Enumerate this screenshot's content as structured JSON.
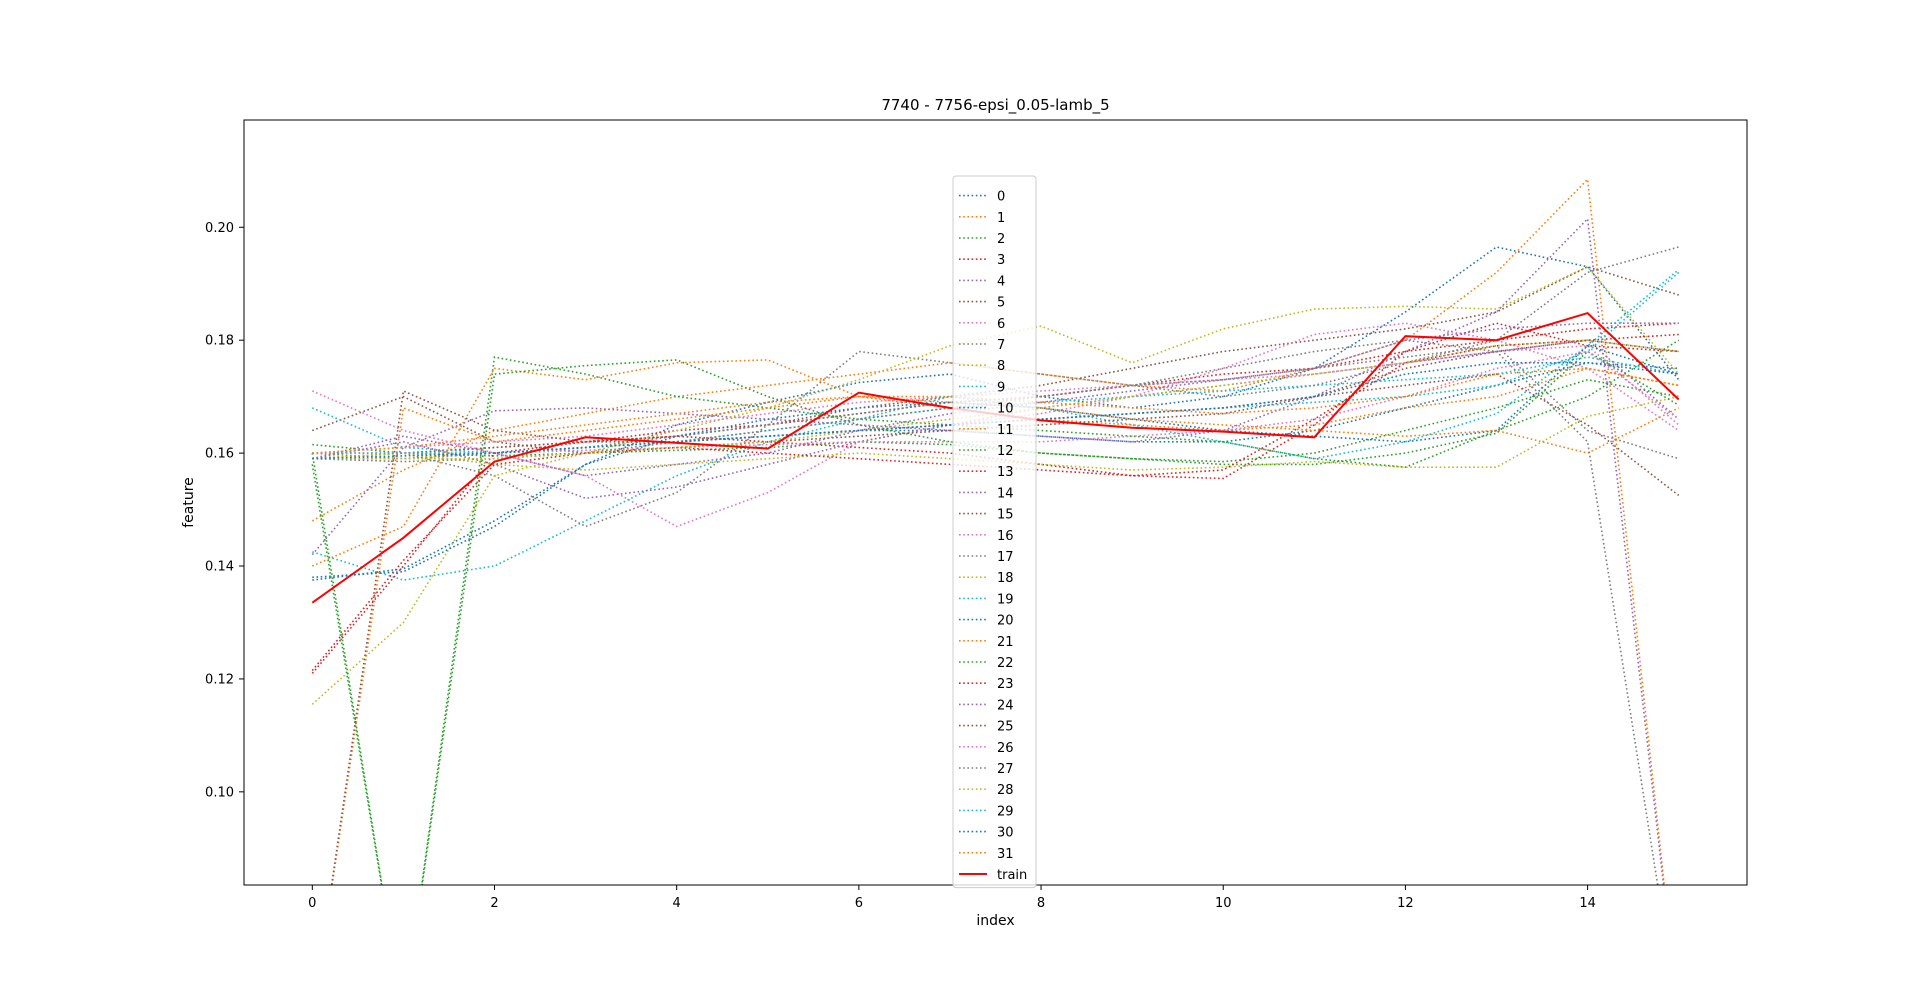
{
  "chart_data": {
    "type": "line",
    "title": "7740 - 7756-epsi_0.05-lamb_5",
    "xlabel": "index",
    "ylabel": "feature",
    "xlim": [
      -0.75,
      15.75
    ],
    "ylim": [
      0.0835,
      0.219
    ],
    "xticks": [
      0,
      2,
      4,
      6,
      8,
      10,
      12,
      14
    ],
    "yticks": [
      0.1,
      0.12,
      0.14,
      0.16,
      0.18,
      0.2
    ],
    "ytick_labels": [
      "0.10",
      "0.12",
      "0.14",
      "0.16",
      "0.18",
      "0.20"
    ],
    "grid": false,
    "legend_position": "upper-center",
    "x": [
      0,
      1,
      2,
      3,
      4,
      5,
      6,
      7,
      8,
      9,
      10,
      11,
      12,
      13,
      14,
      15
    ],
    "series": [
      {
        "name": "0",
        "color": "#1f77b4",
        "style": "dotted",
        "values": [
          0.1375,
          0.1395,
          0.148,
          0.158,
          0.165,
          0.169,
          0.1725,
          0.174,
          0.17,
          0.168,
          0.17,
          0.175,
          0.185,
          0.1965,
          0.193,
          0.173
        ]
      },
      {
        "name": "1",
        "color": "#ff7f0e",
        "style": "dotted",
        "values": [
          0.148,
          0.157,
          0.164,
          0.167,
          0.17,
          0.172,
          0.174,
          0.176,
          0.174,
          0.172,
          0.171,
          0.175,
          0.18,
          0.192,
          0.2085,
          0.06
        ]
      },
      {
        "name": "2",
        "color": "#2ca02c",
        "style": "dotted",
        "values": [
          0.1615,
          0.16,
          0.1595,
          0.16,
          0.1605,
          0.161,
          0.162,
          0.1615,
          0.16,
          0.159,
          0.1585,
          0.16,
          0.164,
          0.168,
          0.173,
          0.17
        ]
      },
      {
        "name": "3",
        "color": "#d62728",
        "style": "dotted",
        "values": [
          0.159,
          0.16,
          0.161,
          0.162,
          0.164,
          0.165,
          0.167,
          0.169,
          0.17,
          0.172,
          0.174,
          0.175,
          0.178,
          0.18,
          0.182,
          0.183
        ]
      },
      {
        "name": "4",
        "color": "#9467bd",
        "style": "dotted",
        "values": [
          0.142,
          0.161,
          0.1675,
          0.168,
          0.167,
          0.166,
          0.165,
          0.164,
          0.163,
          0.162,
          0.164,
          0.17,
          0.178,
          0.185,
          0.2015,
          0.06
        ]
      },
      {
        "name": "5",
        "color": "#8c564b",
        "style": "dotted",
        "values": [
          0.159,
          0.16,
          0.161,
          0.162,
          0.163,
          0.165,
          0.168,
          0.17,
          0.172,
          0.175,
          0.178,
          0.18,
          0.182,
          0.185,
          0.193,
          0.188
        ]
      },
      {
        "name": "6",
        "color": "#e377c2",
        "style": "dotted",
        "values": [
          0.171,
          0.164,
          0.16,
          0.156,
          0.147,
          0.153,
          0.162,
          0.165,
          0.167,
          0.17,
          0.175,
          0.181,
          0.183,
          0.18,
          0.175,
          0.164
        ]
      },
      {
        "name": "7",
        "color": "#7f7f7f",
        "style": "dotted",
        "values": [
          0.159,
          0.16,
          0.156,
          0.147,
          0.153,
          0.165,
          0.178,
          0.176,
          0.174,
          0.172,
          0.17,
          0.172,
          0.176,
          0.18,
          0.192,
          0.1965
        ]
      },
      {
        "name": "8",
        "color": "#bcbd22",
        "style": "dotted",
        "values": [
          0.1155,
          0.13,
          0.156,
          0.16,
          0.164,
          0.168,
          0.173,
          0.179,
          0.1825,
          0.176,
          0.182,
          0.1855,
          0.186,
          0.1855,
          0.193,
          0.174
        ]
      },
      {
        "name": "9",
        "color": "#17becf",
        "style": "dotted",
        "values": [
          0.1425,
          0.1375,
          0.14,
          0.148,
          0.156,
          0.162,
          0.166,
          0.17,
          0.168,
          0.165,
          0.162,
          0.159,
          0.162,
          0.167,
          0.179,
          0.1925
        ]
      },
      {
        "name": "10",
        "color": "#1f77b4",
        "style": "dotted",
        "values": [
          0.159,
          0.159,
          0.16,
          0.161,
          0.162,
          0.163,
          0.164,
          0.164,
          0.163,
          0.162,
          0.162,
          0.164,
          0.168,
          0.172,
          0.176,
          0.175
        ]
      },
      {
        "name": "11",
        "color": "#ff7f0e",
        "style": "dotted",
        "values": [
          0.14,
          0.147,
          0.175,
          0.173,
          0.176,
          0.1765,
          0.17,
          0.168,
          0.166,
          0.165,
          0.164,
          0.165,
          0.168,
          0.17,
          0.175,
          0.172
        ]
      },
      {
        "name": "12",
        "color": "#2ca02c",
        "style": "dotted",
        "values": [
          0.158,
          0.06,
          0.177,
          0.174,
          0.17,
          0.168,
          0.166,
          0.165,
          0.164,
          0.163,
          0.162,
          0.159,
          0.1575,
          0.164,
          0.17,
          0.18
        ]
      },
      {
        "name": "13",
        "color": "#d62728",
        "style": "dotted",
        "values": [
          0.121,
          0.14,
          0.16,
          0.162,
          0.163,
          0.162,
          0.161,
          0.16,
          0.158,
          0.156,
          0.1555,
          0.165,
          0.178,
          0.183,
          0.179,
          0.178
        ]
      },
      {
        "name": "14",
        "color": "#9467bd",
        "style": "dotted",
        "values": [
          0.159,
          0.162,
          0.158,
          0.152,
          0.154,
          0.158,
          0.162,
          0.165,
          0.168,
          0.17,
          0.172,
          0.174,
          0.176,
          0.178,
          0.18,
          0.166
        ]
      },
      {
        "name": "15",
        "color": "#8c564b",
        "style": "dotted",
        "values": [
          0.164,
          0.17,
          0.162,
          0.16,
          0.161,
          0.162,
          0.163,
          0.164,
          0.165,
          0.166,
          0.167,
          0.17,
          0.172,
          0.174,
          0.165,
          0.1525
        ]
      },
      {
        "name": "16",
        "color": "#e377c2",
        "style": "dotted",
        "values": [
          0.16,
          0.161,
          0.162,
          0.163,
          0.165,
          0.167,
          0.169,
          0.17,
          0.171,
          0.172,
          0.173,
          0.174,
          0.176,
          0.178,
          0.179,
          0.165
        ]
      },
      {
        "name": "17",
        "color": "#7f7f7f",
        "style": "dotted",
        "values": [
          0.16,
          0.159,
          0.16,
          0.161,
          0.163,
          0.165,
          0.167,
          0.169,
          0.17,
          0.172,
          0.173,
          0.175,
          0.177,
          0.179,
          0.164,
          0.159
        ]
      },
      {
        "name": "18",
        "color": "#bcbd22",
        "style": "dotted",
        "values": [
          0.159,
          0.16,
          0.158,
          0.157,
          0.158,
          0.159,
          0.16,
          0.159,
          0.158,
          0.157,
          0.1575,
          0.1585,
          0.1575,
          0.1575,
          0.1665,
          0.17
        ]
      },
      {
        "name": "19",
        "color": "#17becf",
        "style": "dotted",
        "values": [
          0.168,
          0.161,
          0.16,
          0.161,
          0.162,
          0.164,
          0.166,
          0.168,
          0.169,
          0.17,
          0.171,
          0.172,
          0.173,
          0.174,
          0.177,
          0.174
        ]
      },
      {
        "name": "20",
        "color": "#1f77b4",
        "style": "dotted",
        "values": [
          0.138,
          0.139,
          0.147,
          0.158,
          0.163,
          0.166,
          0.168,
          0.169,
          0.168,
          0.166,
          0.164,
          0.163,
          0.162,
          0.164,
          0.179,
          0.174
        ]
      },
      {
        "name": "21",
        "color": "#ff7f0e",
        "style": "dotted",
        "values": [
          0.06,
          0.168,
          0.162,
          0.164,
          0.166,
          0.168,
          0.17,
          0.169,
          0.168,
          0.166,
          0.165,
          0.164,
          0.163,
          0.164,
          0.16,
          0.168
        ]
      },
      {
        "name": "22",
        "color": "#2ca02c",
        "style": "dotted",
        "values": [
          0.16,
          0.06,
          0.174,
          0.1755,
          0.1765,
          0.17,
          0.165,
          0.162,
          0.16,
          0.159,
          0.158,
          0.158,
          0.16,
          0.1635,
          0.178,
          0.1685
        ]
      },
      {
        "name": "23",
        "color": "#d62728",
        "style": "dotted",
        "values": [
          0.1215,
          0.141,
          0.158,
          0.16,
          0.161,
          0.16,
          0.159,
          0.158,
          0.157,
          0.156,
          0.157,
          0.166,
          0.176,
          0.179,
          0.18,
          0.181
        ]
      },
      {
        "name": "24",
        "color": "#9467bd",
        "style": "dotted",
        "values": [
          0.159,
          0.163,
          0.16,
          0.156,
          0.158,
          0.16,
          0.164,
          0.167,
          0.169,
          0.171,
          0.173,
          0.175,
          0.18,
          0.182,
          0.183,
          0.183
        ]
      },
      {
        "name": "25",
        "color": "#8c564b",
        "style": "dotted",
        "values": [
          0.06,
          0.171,
          0.164,
          0.162,
          0.162,
          0.163,
          0.164,
          0.165,
          0.166,
          0.167,
          0.168,
          0.17,
          0.175,
          0.178,
          0.18,
          0.178
        ]
      },
      {
        "name": "26",
        "color": "#e377c2",
        "style": "dotted",
        "values": [
          0.16,
          0.16,
          0.16,
          0.1605,
          0.161,
          0.1615,
          0.162,
          0.162,
          0.162,
          0.163,
          0.164,
          0.166,
          0.17,
          0.175,
          0.178,
          0.166
        ]
      },
      {
        "name": "27",
        "color": "#7f7f7f",
        "style": "dotted",
        "values": [
          0.159,
          0.1585,
          0.159,
          0.16,
          0.162,
          0.164,
          0.166,
          0.168,
          0.17,
          0.172,
          0.175,
          0.178,
          0.18,
          0.178,
          0.162,
          0.06
        ]
      },
      {
        "name": "28",
        "color": "#bcbd22",
        "style": "dotted",
        "values": [
          0.159,
          0.159,
          0.159,
          0.16,
          0.161,
          0.162,
          0.164,
          0.166,
          0.168,
          0.17,
          0.172,
          0.174,
          0.176,
          0.179,
          0.18,
          0.178
        ]
      },
      {
        "name": "29",
        "color": "#17becf",
        "style": "dotted",
        "values": [
          0.16,
          0.16,
          0.16,
          0.161,
          0.162,
          0.163,
          0.164,
          0.165,
          0.166,
          0.167,
          0.168,
          0.169,
          0.17,
          0.172,
          0.178,
          0.192
        ]
      },
      {
        "name": "30",
        "color": "#1f77b4",
        "style": "dotted",
        "values": [
          0.159,
          0.1595,
          0.16,
          0.161,
          0.162,
          0.163,
          0.164,
          0.165,
          0.166,
          0.167,
          0.168,
          0.17,
          0.174,
          0.176,
          0.176,
          0.174
        ]
      },
      {
        "name": "31",
        "color": "#ff7f0e",
        "style": "dotted",
        "values": [
          0.16,
          0.161,
          0.163,
          0.165,
          0.167,
          0.169,
          0.17,
          0.17,
          0.169,
          0.168,
          0.167,
          0.168,
          0.17,
          0.174,
          0.175,
          0.172
        ]
      },
      {
        "name": "train",
        "color": "#ff0000",
        "style": "solid",
        "values": [
          0.1335,
          0.145,
          0.1585,
          0.1628,
          0.1618,
          0.1608,
          0.1707,
          0.168,
          0.1658,
          0.1645,
          0.1638,
          0.1628,
          0.1807,
          0.18,
          0.1848,
          0.1695
        ]
      }
    ]
  }
}
